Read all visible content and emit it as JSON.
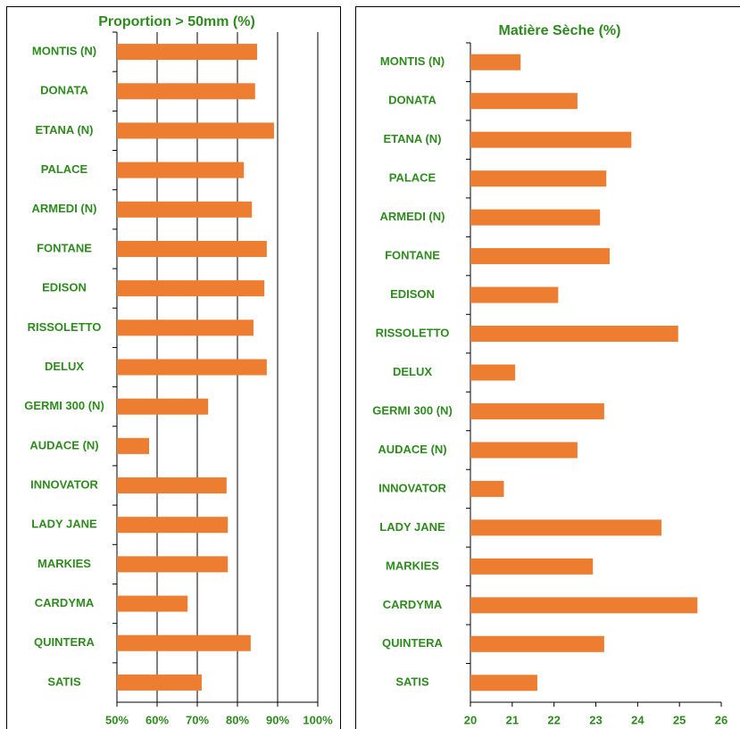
{
  "chart_data": [
    {
      "type": "bar",
      "orientation": "horizontal",
      "title": "Proportion > 50mm (%)",
      "categories": [
        "MONTIS (N)",
        "DONATA",
        "ETANA (N)",
        "PALACE",
        "ARMEDI (N)",
        "FONTANE",
        "EDISON",
        "RISSOLETTO",
        "DELUX",
        "GERMI 300 (N)",
        "AUDACE (N)",
        "INNOVATOR",
        "LADY JANE",
        "MARKIES",
        "CARDYMA",
        "QUINTERA",
        "SATIS"
      ],
      "values": [
        84.9,
        84.4,
        89.1,
        81.6,
        83.6,
        87.3,
        86.7,
        84,
        87.3,
        72.7,
        58,
        77.3,
        77.6,
        77.6,
        67.6,
        83.3,
        71.1
      ],
      "color": "#ed7d31",
      "xlim": [
        50,
        100
      ],
      "xticks": [
        {
          "value": 50,
          "label": "50%"
        },
        {
          "value": 60,
          "label": "60%"
        },
        {
          "value": 70,
          "label": "70%"
        },
        {
          "value": 80,
          "label": "80%"
        },
        {
          "value": 90,
          "label": "90%"
        },
        {
          "value": 100,
          "label": "100%"
        }
      ],
      "grid": true
    },
    {
      "type": "bar",
      "orientation": "horizontal",
      "title": "Matière Sèche (%)",
      "categories": [
        "MONTIS (N)",
        "DONATA",
        "ETANA (N)",
        "PALACE",
        "ARMEDI (N)",
        "FONTANE",
        "EDISON",
        "RISSOLETTO",
        "DELUX",
        "GERMI 300 (N)",
        "AUDACE (N)",
        "INNOVATOR",
        "LADY JANE",
        "MARKIES",
        "CARDYMA",
        "QUINTERA",
        "SATIS"
      ],
      "values": [
        21.2,
        22.56,
        23.85,
        23.25,
        23.1,
        23.33,
        22.1,
        24.97,
        21.07,
        23.2,
        22.56,
        20.8,
        24.57,
        22.93,
        25.43,
        23.2,
        21.6
      ],
      "color": "#ed7d31",
      "xlim": [
        20,
        26
      ],
      "xticks": [
        20,
        21,
        22,
        23,
        24,
        25,
        26
      ],
      "grid": false
    }
  ]
}
